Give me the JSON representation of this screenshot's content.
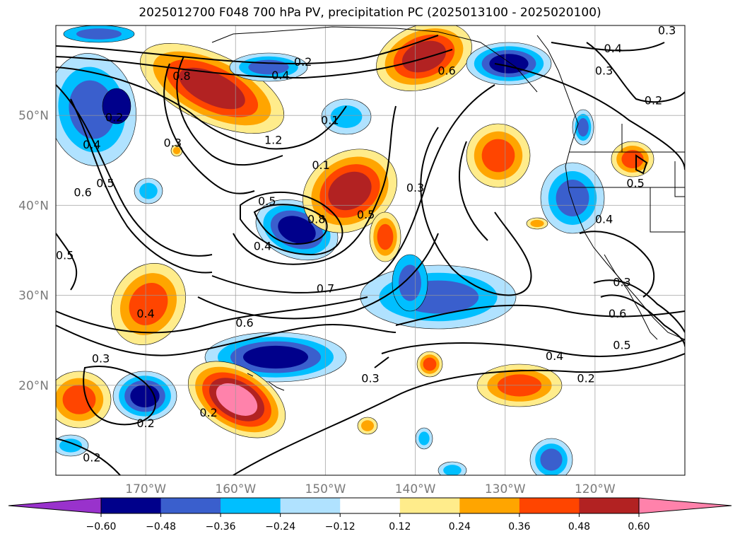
{
  "title": "2025012700 F048 700 hPa PV, precipitation PC (2025013100 - 2025020100)",
  "chart_data": {
    "type": "heatmap",
    "title": "2025012700 F048 700 hPa PV, precipitation PC (2025013100 - 2025020100)",
    "projection": "lat-lon map",
    "xlim": [
      -180,
      -110
    ],
    "ylim": [
      10,
      60
    ],
    "lon_ticks": [
      -170,
      -160,
      -150,
      -140,
      -130,
      -120
    ],
    "lon_tick_labels": [
      "170°W",
      "160°W",
      "150°W",
      "140°W",
      "130°W",
      "120°W"
    ],
    "lat_ticks": [
      20,
      30,
      40,
      50
    ],
    "lat_tick_labels": [
      "20°N",
      "30°N",
      "40°N",
      "50°N"
    ],
    "grid": true,
    "colorbar": {
      "orientation": "horizontal",
      "extend": "both",
      "levels": [
        -0.6,
        -0.48,
        -0.36,
        -0.24,
        -0.12,
        0.12,
        0.24,
        0.36,
        0.48,
        0.6
      ],
      "tick_labels": [
        "−0.60",
        "−0.48",
        "−0.36",
        "−0.24",
        "−0.12",
        "0.12",
        "0.24",
        "0.36",
        "0.48",
        "0.60"
      ],
      "colors": [
        "#9932cc",
        "#00008b",
        "#3a5fcd",
        "#00bfff",
        "#b0e2ff",
        "#ffffff",
        "#ffec8b",
        "#ffa500",
        "#ff4500",
        "#b22222",
        "#ff82ab"
      ]
    },
    "pv_contour_labels": [
      {
        "text": "0.2",
        "lon": -152.5,
        "lat": 56.0
      },
      {
        "text": "0.4",
        "lon": -155.0,
        "lat": 54.5
      },
      {
        "text": "0.8",
        "lon": -166.0,
        "lat": 54.4
      },
      {
        "text": "1.2",
        "lon": -155.8,
        "lat": 47.3
      },
      {
        "text": "0.1",
        "lon": -149.5,
        "lat": 49.5
      },
      {
        "text": "0.1",
        "lon": -150.5,
        "lat": 44.5
      },
      {
        "text": "0.2",
        "lon": -173.5,
        "lat": 49.8
      },
      {
        "text": "0.4",
        "lon": -176.0,
        "lat": 46.8
      },
      {
        "text": "0.5",
        "lon": -174.5,
        "lat": 42.5
      },
      {
        "text": "0.6",
        "lon": -177.0,
        "lat": 41.5
      },
      {
        "text": "0.3",
        "lon": -167.0,
        "lat": 47.0
      },
      {
        "text": "0.5",
        "lon": -179.0,
        "lat": 34.5
      },
      {
        "text": "0.5",
        "lon": -156.5,
        "lat": 40.5
      },
      {
        "text": "0.4",
        "lon": -157.0,
        "lat": 35.5
      },
      {
        "text": "0.8",
        "lon": -151.0,
        "lat": 38.5
      },
      {
        "text": "0.5",
        "lon": -145.5,
        "lat": 39.0
      },
      {
        "text": "0.3",
        "lon": -140.0,
        "lat": 42.0
      },
      {
        "text": "0.7",
        "lon": -150.0,
        "lat": 30.8
      },
      {
        "text": "0.6",
        "lon": -159.0,
        "lat": 27.0
      },
      {
        "text": "0.4",
        "lon": -170.0,
        "lat": 28.0
      },
      {
        "text": "0.3",
        "lon": -175.0,
        "lat": 23.0
      },
      {
        "text": "0.2",
        "lon": -163.0,
        "lat": 17.0
      },
      {
        "text": "0.2",
        "lon": -170.0,
        "lat": 15.8
      },
      {
        "text": "0.2",
        "lon": -176.0,
        "lat": 12.0
      },
      {
        "text": "0.3",
        "lon": -145.0,
        "lat": 20.8
      },
      {
        "text": "0.4",
        "lon": -124.5,
        "lat": 23.3
      },
      {
        "text": "0.2",
        "lon": -121.0,
        "lat": 20.8
      },
      {
        "text": "0.5",
        "lon": -117.0,
        "lat": 24.5
      },
      {
        "text": "0.6",
        "lon": -117.5,
        "lat": 28.0
      },
      {
        "text": "0.3",
        "lon": -117.0,
        "lat": 31.5
      },
      {
        "text": "0.4",
        "lon": -119.0,
        "lat": 38.5
      },
      {
        "text": "0.5",
        "lon": -115.5,
        "lat": 42.5
      },
      {
        "text": "0.4",
        "lon": -118.0,
        "lat": 57.5
      },
      {
        "text": "0.3",
        "lon": -119.0,
        "lat": 55.0
      },
      {
        "text": "0.2",
        "lon": -113.5,
        "lat": 51.7
      },
      {
        "text": "0.3",
        "lon": -112.0,
        "lat": 59.5
      },
      {
        "text": "0.6",
        "lon": -136.5,
        "lat": 55.0
      }
    ]
  }
}
